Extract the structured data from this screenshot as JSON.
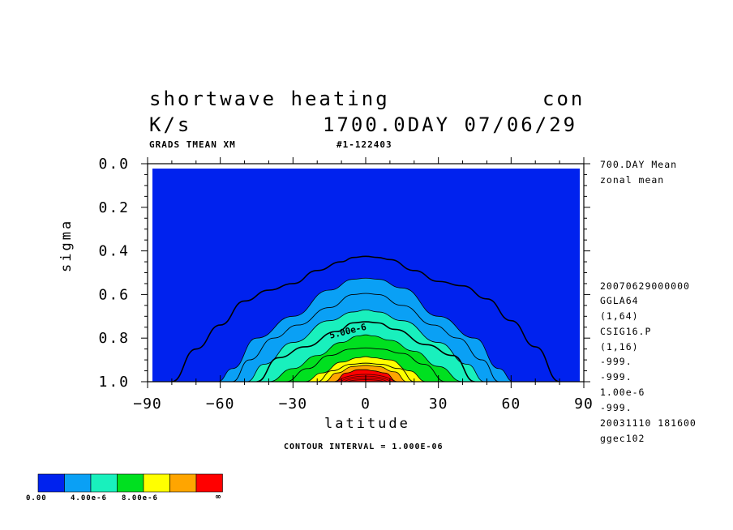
{
  "header": {
    "title": "shortwave heating",
    "title_right": "con",
    "units": "K/s",
    "time": "1700.0DAY 07/06/29",
    "sub_left": "GRADS TMEAN XM",
    "sub_mid": "#1-122403"
  },
  "side_info": {
    "top": [
      "700.DAY Mean",
      "zonal mean"
    ],
    "bottom": [
      "20070629000000",
      "GGLA64",
      "(1,64)",
      "CSIG16.P",
      "(1,16)",
      "-999.",
      "-999.",
      "1.00e-6",
      "-999.",
      "20031110 181600",
      "ggec102"
    ]
  },
  "footer": {
    "contour_interval": "CONTOUR INTERVAL = 1.000E-06"
  },
  "colorbar": {
    "colors": [
      "#0022ee",
      "#0aa0f5",
      "#19f0bd",
      "#00e020",
      "#ffff00",
      "#ffa500",
      "#ff0000"
    ],
    "labels": [
      "0.00",
      "4.00e-6",
      "8.00e-6",
      "∞"
    ]
  },
  "chart_data": {
    "type": "heatmap",
    "title": "shortwave heating",
    "xlabel": "latitude",
    "ylabel": "sigma",
    "xlim": [
      -90,
      90
    ],
    "ylim": [
      1.0,
      0.0
    ],
    "x_ticks": [
      -90,
      -60,
      -30,
      0,
      30,
      60,
      90
    ],
    "x_tick_labels": [
      "−90",
      "−60",
      "−30",
      "0",
      "30",
      "60",
      "90"
    ],
    "y_ticks": [
      0.0,
      0.2,
      0.4,
      0.6,
      0.8,
      1.0
    ],
    "y_tick_labels": [
      "0.0",
      "0.2",
      "0.4",
      "0.6",
      "0.8",
      "1.0"
    ],
    "contour_label": "5.00e-6",
    "fill_contours": [
      {
        "level": 2e-06,
        "color": "#0aa0f5",
        "points": [
          [
            -61,
            1.0
          ],
          [
            -55,
            0.94
          ],
          [
            -45,
            0.8
          ],
          [
            -30,
            0.7
          ],
          [
            -15,
            0.58
          ],
          [
            -5,
            0.53
          ],
          [
            0,
            0.525
          ],
          [
            5,
            0.53
          ],
          [
            15,
            0.57
          ],
          [
            30,
            0.7
          ],
          [
            45,
            0.8
          ],
          [
            55,
            0.94
          ],
          [
            61,
            1.0
          ]
        ]
      },
      {
        "level": 4e-06,
        "color": "#19f0bd",
        "points": [
          [
            -49,
            1.0
          ],
          [
            -42,
            0.92
          ],
          [
            -30,
            0.82
          ],
          [
            -15,
            0.72
          ],
          [
            -5,
            0.68
          ],
          [
            0,
            0.67
          ],
          [
            5,
            0.68
          ],
          [
            15,
            0.72
          ],
          [
            30,
            0.82
          ],
          [
            42,
            0.92
          ],
          [
            49,
            1.0
          ]
        ]
      },
      {
        "level": 6e-06,
        "color": "#00e020",
        "points": [
          [
            -40,
            1.0
          ],
          [
            -30,
            0.94
          ],
          [
            -20,
            0.88
          ],
          [
            -10,
            0.82
          ],
          [
            -3,
            0.79
          ],
          [
            0,
            0.785
          ],
          [
            3,
            0.79
          ],
          [
            10,
            0.81
          ],
          [
            20,
            0.86
          ],
          [
            30,
            0.93
          ],
          [
            40,
            1.0
          ]
        ]
      },
      {
        "level": 8e-06,
        "color": "#ffff00",
        "points": [
          [
            -25,
            1.0
          ],
          [
            -18,
            0.96
          ],
          [
            -10,
            0.91
          ],
          [
            -3,
            0.89
          ],
          [
            0,
            0.885
          ],
          [
            3,
            0.89
          ],
          [
            10,
            0.9
          ],
          [
            18,
            0.95
          ],
          [
            25,
            1.0
          ]
        ]
      },
      {
        "level": 1e-05,
        "color": "#ffa500",
        "points": [
          [
            -17,
            1.0
          ],
          [
            -12,
            0.96
          ],
          [
            -5,
            0.93
          ],
          [
            0,
            0.925
          ],
          [
            5,
            0.93
          ],
          [
            12,
            0.955
          ],
          [
            17,
            1.0
          ]
        ]
      },
      {
        "level": 1.2e-05,
        "color": "#ff0000",
        "points": [
          [
            -13,
            1.0
          ],
          [
            -8,
            0.96
          ],
          [
            -3,
            0.945
          ],
          [
            0,
            0.945
          ],
          [
            3,
            0.95
          ],
          [
            8,
            0.96
          ],
          [
            13,
            1.0
          ]
        ]
      }
    ],
    "line_contours": [
      {
        "level": 1e-06,
        "points": [
          [
            -80,
            1.0
          ],
          [
            -70,
            0.85
          ],
          [
            -60,
            0.74
          ],
          [
            -50,
            0.63
          ],
          [
            -40,
            0.58
          ],
          [
            -30,
            0.55
          ],
          [
            -20,
            0.49
          ],
          [
            -10,
            0.45
          ],
          [
            -5,
            0.43
          ],
          [
            0,
            0.425
          ],
          [
            5,
            0.43
          ],
          [
            10,
            0.44
          ],
          [
            20,
            0.49
          ],
          [
            30,
            0.54
          ],
          [
            40,
            0.56
          ],
          [
            50,
            0.62
          ],
          [
            60,
            0.72
          ],
          [
            70,
            0.84
          ],
          [
            80,
            1.0
          ]
        ]
      },
      {
        "level": 3e-06,
        "points": [
          [
            -55,
            1.0
          ],
          [
            -48,
            0.9
          ],
          [
            -38,
            0.8
          ],
          [
            -28,
            0.74
          ],
          [
            -15,
            0.66
          ],
          [
            -5,
            0.6
          ],
          [
            0,
            0.595
          ],
          [
            5,
            0.6
          ],
          [
            15,
            0.65
          ],
          [
            28,
            0.74
          ],
          [
            38,
            0.8
          ],
          [
            48,
            0.9
          ],
          [
            55,
            1.0
          ]
        ]
      },
      {
        "level": 5e-06,
        "points": [
          [
            -45,
            1.0
          ],
          [
            -36,
            0.89
          ],
          [
            -25,
            0.84
          ],
          [
            -12,
            0.77
          ],
          [
            -5,
            0.73
          ],
          [
            0,
            0.725
          ],
          [
            5,
            0.73
          ],
          [
            12,
            0.76
          ],
          [
            25,
            0.83
          ],
          [
            36,
            0.88
          ],
          [
            45,
            1.0
          ]
        ]
      },
      {
        "level": 7e-06,
        "points": [
          [
            -33,
            1.0
          ],
          [
            -24,
            0.94
          ],
          [
            -15,
            0.88
          ],
          [
            -6,
            0.85
          ],
          [
            0,
            0.845
          ],
          [
            6,
            0.85
          ],
          [
            15,
            0.87
          ],
          [
            24,
            0.92
          ],
          [
            33,
            1.0
          ]
        ]
      },
      {
        "level": 9e-06,
        "points": [
          [
            -20,
            1.0
          ],
          [
            -14,
            0.95
          ],
          [
            -6,
            0.92
          ],
          [
            0,
            0.915
          ],
          [
            6,
            0.92
          ],
          [
            14,
            0.94
          ],
          [
            20,
            1.0
          ]
        ]
      }
    ]
  }
}
